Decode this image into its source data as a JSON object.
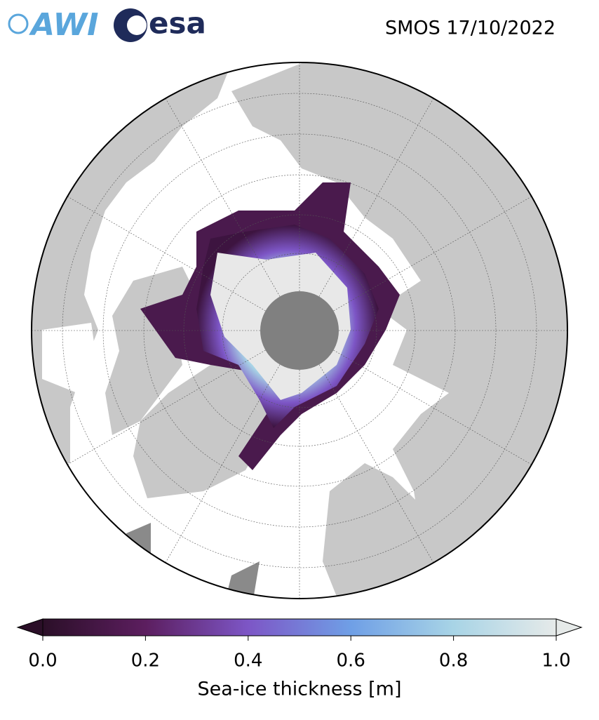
{
  "header": {
    "logos": [
      "AWI",
      "esa"
    ],
    "title": "SMOS 17/10/2022"
  },
  "colorbar": {
    "label": "Sea-ice thickness [m]",
    "lim": [
      0,
      1
    ],
    "ticks": [
      {
        "value": 0,
        "label": "0.0"
      },
      {
        "value": 0.2,
        "label": "0.2"
      },
      {
        "value": 0.4,
        "label": "0.4"
      },
      {
        "value": 0.6,
        "label": "0.6"
      },
      {
        "value": 0.8,
        "label": "0.8"
      },
      {
        "value": 1,
        "label": "1.0"
      }
    ],
    "colors": [
      "#2b0f28",
      "#5c1e5f",
      "#7d56c6",
      "#6f9fe6",
      "#a8d4e6",
      "#e6eae9"
    ]
  }
}
